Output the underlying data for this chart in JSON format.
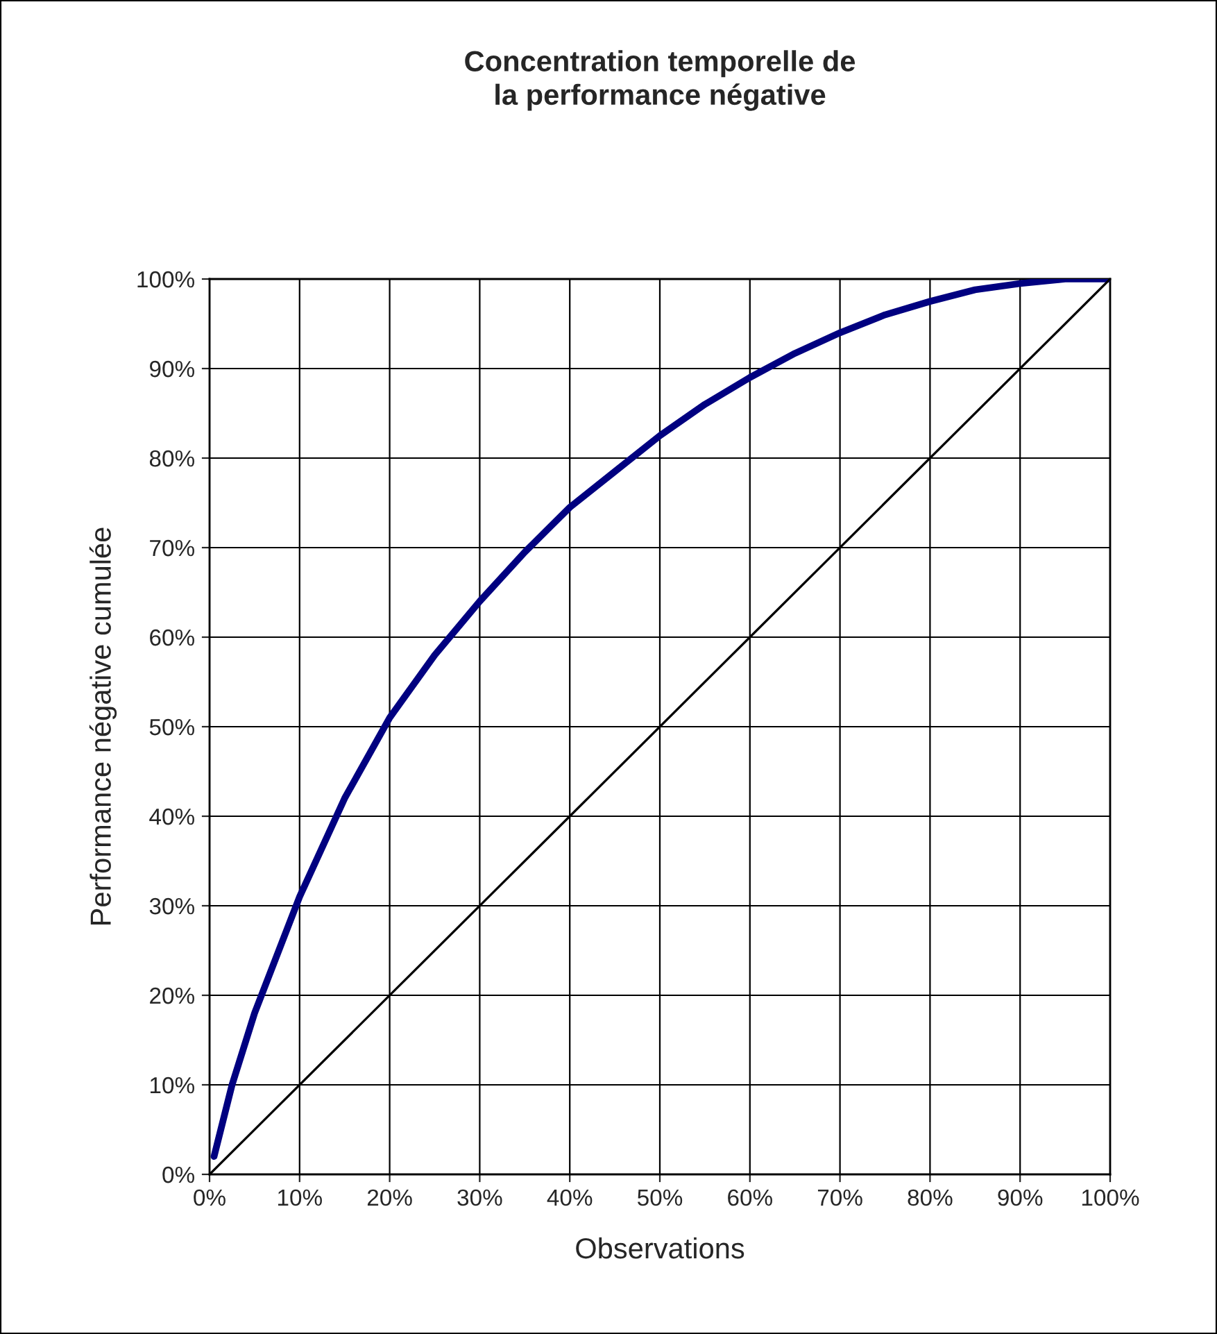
{
  "chart_data": {
    "type": "line",
    "title": "Concentration temporelle de\nla performance négative",
    "xlabel": "Observations",
    "ylabel": "Performance négative cumulée",
    "series": [
      {
        "color": "#000080",
        "x": [
          0.5,
          2.5,
          5,
          10,
          15,
          20,
          25,
          30,
          35,
          40,
          45,
          50,
          55,
          60,
          65,
          70,
          75,
          80,
          85,
          90,
          95,
          100
        ],
        "values": [
          2,
          10,
          18,
          31,
          42,
          51,
          58,
          64,
          69.5,
          74.5,
          78.5,
          82.5,
          86,
          89,
          91.7,
          94,
          96,
          97.5,
          98.8,
          99.5,
          100,
          100
        ]
      },
      {
        "color": "#000000",
        "x": [
          0,
          100
        ],
        "values": [
          0,
          100
        ]
      }
    ],
    "xlim": [
      0,
      100
    ],
    "ylim": [
      0,
      100
    ],
    "xticks": [
      {
        "value": 0,
        "label": "0%"
      },
      {
        "value": 10,
        "label": "10%"
      },
      {
        "value": 20,
        "label": "20%"
      },
      {
        "value": 30,
        "label": "30%"
      },
      {
        "value": 40,
        "label": "40%"
      },
      {
        "value": 50,
        "label": "50%"
      },
      {
        "value": 60,
        "label": "60%"
      },
      {
        "value": 70,
        "label": "70%"
      },
      {
        "value": 80,
        "label": "80%"
      },
      {
        "value": 90,
        "label": "90%"
      },
      {
        "value": 100,
        "label": "100%"
      }
    ],
    "yticks": [
      {
        "value": 0,
        "label": "0%"
      },
      {
        "value": 10,
        "label": "10%"
      },
      {
        "value": 20,
        "label": "20%"
      },
      {
        "value": 30,
        "label": "30%"
      },
      {
        "value": 40,
        "label": "40%"
      },
      {
        "value": 50,
        "label": "50%"
      },
      {
        "value": 60,
        "label": "60%"
      },
      {
        "value": 70,
        "label": "70%"
      },
      {
        "value": 80,
        "label": "80%"
      },
      {
        "value": 90,
        "label": "90%"
      },
      {
        "value": 100,
        "label": "100%"
      }
    ],
    "grid": true,
    "line_style": "solid"
  }
}
